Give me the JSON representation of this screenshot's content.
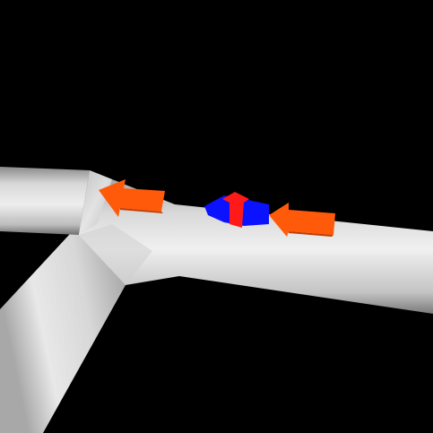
{
  "scene": {
    "background_color": "#000000",
    "pipe_colors": {
      "highlight": "#f2f2f2",
      "mid": "#c9c9c9",
      "shadow": "#7f7f7f",
      "dark": "#5a5a5a"
    },
    "markers": {
      "flow_arrow_color": "#ff5a0a",
      "blue_marker_color": "#0a12ff",
      "red_marker_color": "#ff1a1a"
    },
    "objects": [
      {
        "name": "pipe-left-branch",
        "kind": "pipe"
      },
      {
        "name": "pipe-lower-branch",
        "kind": "pipe"
      },
      {
        "name": "pipe-main-right",
        "kind": "pipe"
      },
      {
        "name": "flow-arrow-left",
        "kind": "arrow",
        "direction": "left"
      },
      {
        "name": "flow-arrow-right",
        "kind": "arrow",
        "direction": "left"
      },
      {
        "name": "agent-marker",
        "kind": "marker"
      }
    ]
  }
}
